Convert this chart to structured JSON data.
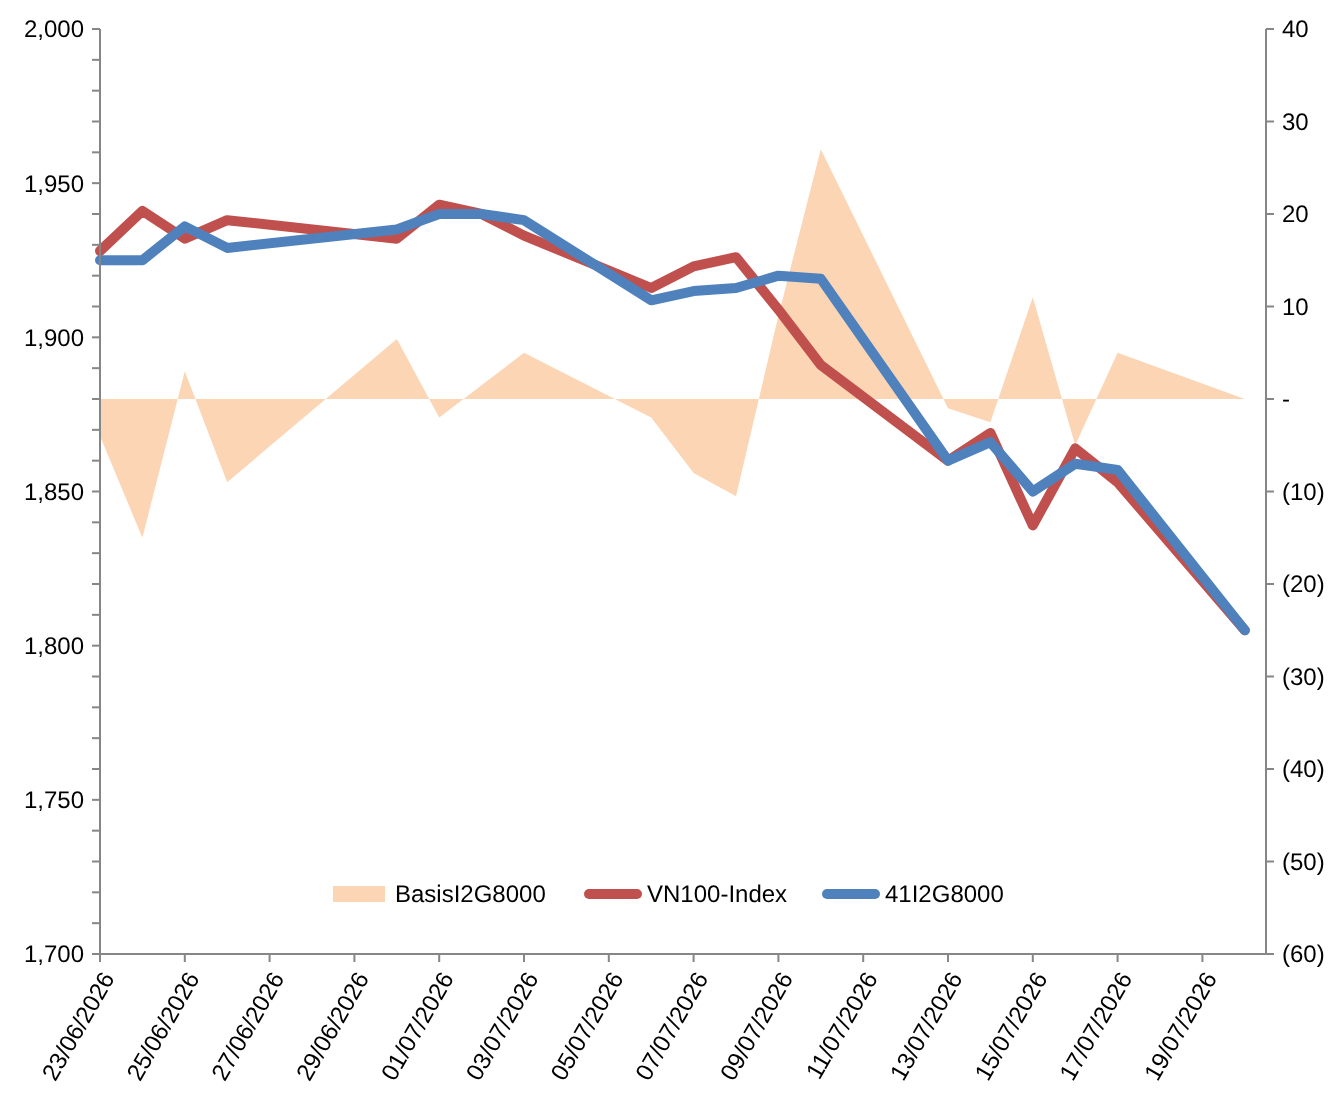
{
  "chart_data": {
    "type": "line",
    "x": [
      "2026-06-23",
      "2026-06-24",
      "2026-06-25",
      "2026-06-26",
      "2026-06-30",
      "2026-07-01",
      "2026-07-02",
      "2026-07-03",
      "2026-07-06",
      "2026-07-07",
      "2026-07-08",
      "2026-07-09",
      "2026-07-10",
      "2026-07-13",
      "2026-07-14",
      "2026-07-15",
      "2026-07-16",
      "2026-07-17",
      "2026-07-20"
    ],
    "series": [
      {
        "name": "BasisI2G8000",
        "type": "area",
        "axis": "y2",
        "color": "#fcd5b4",
        "values": [
          -4,
          -15,
          3,
          -9,
          6.5,
          -2,
          1.5,
          5,
          -2,
          -8,
          -10.5,
          9,
          27,
          -1,
          -2.5,
          11,
          -5,
          5,
          0
        ]
      },
      {
        "name": "VN100-Index",
        "color": "#c0504d",
        "values": [
          1928,
          1941,
          1932,
          1938,
          1932,
          1943,
          1940,
          1933,
          1916,
          1923,
          1926,
          1909,
          1891,
          1860,
          1869,
          1839,
          1864,
          1853,
          1805
        ]
      },
      {
        "name": "41I2G8000",
        "color": "#4f81bd",
        "values": [
          1925,
          1925,
          1936,
          1929,
          1935,
          1940,
          1940,
          1938,
          1912,
          1915,
          1916,
          1920,
          1919,
          1860,
          1866,
          1850,
          1859,
          1857,
          1805
        ]
      }
    ],
    "xlim": [
      "2026-06-23",
      "2026-07-20T12:00"
    ],
    "xticks": [
      {
        "value": "2026-06-23",
        "label": "23/06/2026"
      },
      {
        "value": "2026-06-25",
        "label": "25/06/2026"
      },
      {
        "value": "2026-06-27",
        "label": "27/06/2026"
      },
      {
        "value": "2026-06-29",
        "label": "29/06/2026"
      },
      {
        "value": "2026-07-01",
        "label": "01/07/2026"
      },
      {
        "value": "2026-07-03",
        "label": "03/07/2026"
      },
      {
        "value": "2026-07-05",
        "label": "05/07/2026"
      },
      {
        "value": "2026-07-07",
        "label": "07/07/2026"
      },
      {
        "value": "2026-07-09",
        "label": "09/07/2026"
      },
      {
        "value": "2026-07-11",
        "label": "11/07/2026"
      },
      {
        "value": "2026-07-13",
        "label": "13/07/2026"
      },
      {
        "value": "2026-07-15",
        "label": "15/07/2026"
      },
      {
        "value": "2026-07-17",
        "label": "17/07/2026"
      },
      {
        "value": "2026-07-19",
        "label": "19/07/2026"
      }
    ],
    "ylim": [
      1700,
      2000
    ],
    "yticks": [
      {
        "value": 1700,
        "label": "1,700"
      },
      {
        "value": 1710,
        "label": null
      },
      {
        "value": 1720,
        "label": null
      },
      {
        "value": 1730,
        "label": null
      },
      {
        "value": 1740,
        "label": null
      },
      {
        "value": 1750,
        "label": "1,750"
      },
      {
        "value": 1760,
        "label": null
      },
      {
        "value": 1770,
        "label": null
      },
      {
        "value": 1780,
        "label": null
      },
      {
        "value": 1790,
        "label": null
      },
      {
        "value": 1800,
        "label": "1,800"
      },
      {
        "value": 1810,
        "label": null
      },
      {
        "value": 1820,
        "label": null
      },
      {
        "value": 1830,
        "label": null
      },
      {
        "value": 1840,
        "label": null
      },
      {
        "value": 1850,
        "label": "1,850"
      },
      {
        "value": 1860,
        "label": null
      },
      {
        "value": 1870,
        "label": null
      },
      {
        "value": 1880,
        "label": null
      },
      {
        "value": 1890,
        "label": null
      },
      {
        "value": 1900,
        "label": "1,900"
      },
      {
        "value": 1910,
        "label": null
      },
      {
        "value": 1920,
        "label": null
      },
      {
        "value": 1930,
        "label": null
      },
      {
        "value": 1940,
        "label": null
      },
      {
        "value": 1950,
        "label": "1,950"
      },
      {
        "value": 1960,
        "label": null
      },
      {
        "value": 1970,
        "label": null
      },
      {
        "value": 1980,
        "label": null
      },
      {
        "value": 1990,
        "label": null
      },
      {
        "value": 2000,
        "label": "2,000"
      }
    ],
    "y2lim": [
      -60,
      40
    ],
    "y2ticks": [
      {
        "value": -60,
        "label": "(60)"
      },
      {
        "value": -50,
        "label": "(50)"
      },
      {
        "value": -40,
        "label": "(40)"
      },
      {
        "value": -30,
        "label": "(30)"
      },
      {
        "value": -20,
        "label": "(20)"
      },
      {
        "value": -10,
        "label": "(10)"
      },
      {
        "value": 0,
        "label": "-"
      },
      10,
      20,
      30,
      40
    ],
    "grid": false,
    "legend": "bottom"
  }
}
